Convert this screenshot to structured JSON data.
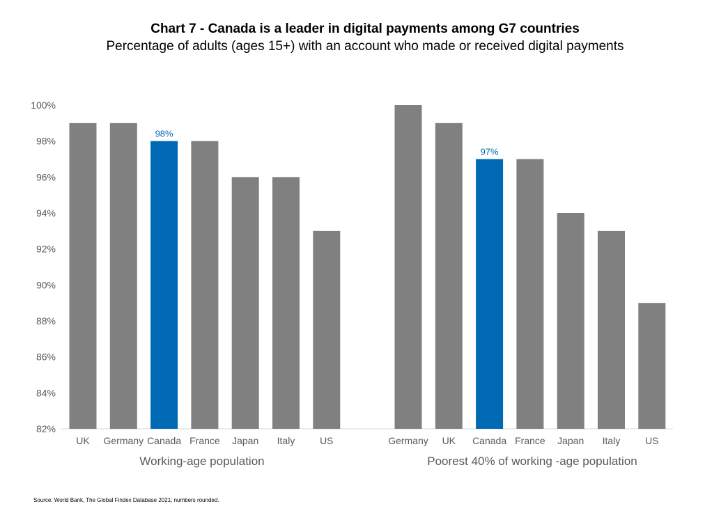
{
  "chart_data": [
    {
      "type": "bar",
      "title": "Chart 7 - Canada is a leader in digital payments among G7 countries",
      "subtitle": "Percentage of adults (ages 15+) with an account who made or received digital payments",
      "xlabel": "Working-age population",
      "ylabel": "",
      "ylim": [
        82,
        100
      ],
      "yticks": [
        "82%",
        "84%",
        "86%",
        "88%",
        "90%",
        "92%",
        "94%",
        "96%",
        "98%",
        "100%"
      ],
      "categories": [
        "UK",
        "Germany",
        "Canada",
        "France",
        "Japan",
        "Italy",
        "US"
      ],
      "values": [
        99,
        99,
        98,
        98,
        96,
        96,
        93
      ],
      "highlight": "Canada",
      "data_labels": {
        "Canada": "98%"
      },
      "grid": false
    },
    {
      "type": "bar",
      "xlabel": "Poorest 40% of working -age population",
      "ylim": [
        82,
        100
      ],
      "categories": [
        "Germany",
        "UK",
        "Canada",
        "France",
        "Japan",
        "Italy",
        "US"
      ],
      "values": [
        100,
        99,
        97,
        97,
        94,
        93,
        89
      ],
      "highlight": "Canada",
      "data_labels": {
        "Canada": "97%"
      },
      "grid": false
    }
  ],
  "colors": {
    "bar": "#808080",
    "highlight": "#0069B4",
    "axis": "#D9D9D9"
  },
  "source": "Source: World Bank, The Global Findex Database 2021; numbers rounded."
}
